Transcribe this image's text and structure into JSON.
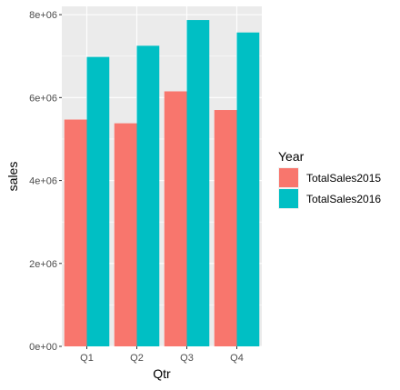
{
  "chart_data": {
    "type": "bar",
    "title": "",
    "xlabel": "Qtr",
    "ylabel": "sales",
    "categories": [
      "Q1",
      "Q2",
      "Q3",
      "Q4"
    ],
    "ylim": [
      0,
      8200000
    ],
    "y_ticks": [
      0,
      2000000,
      4000000,
      6000000,
      8000000
    ],
    "y_tick_labels": [
      "0e+00",
      "2e+06",
      "4e+06",
      "6e+06",
      "8e+06"
    ],
    "series": [
      {
        "name": "TotalSales2015",
        "color": "#F8766D",
        "values": [
          5470000,
          5380000,
          6150000,
          5700000
        ]
      },
      {
        "name": "TotalSales2016",
        "color": "#00BFC4",
        "values": [
          6980000,
          7250000,
          7870000,
          7570000
        ]
      }
    ],
    "legend": {
      "title": "Year",
      "placement": "right"
    },
    "grid": true,
    "panel_background": "#EBEBEB",
    "grid_color": "#FFFFFF"
  }
}
